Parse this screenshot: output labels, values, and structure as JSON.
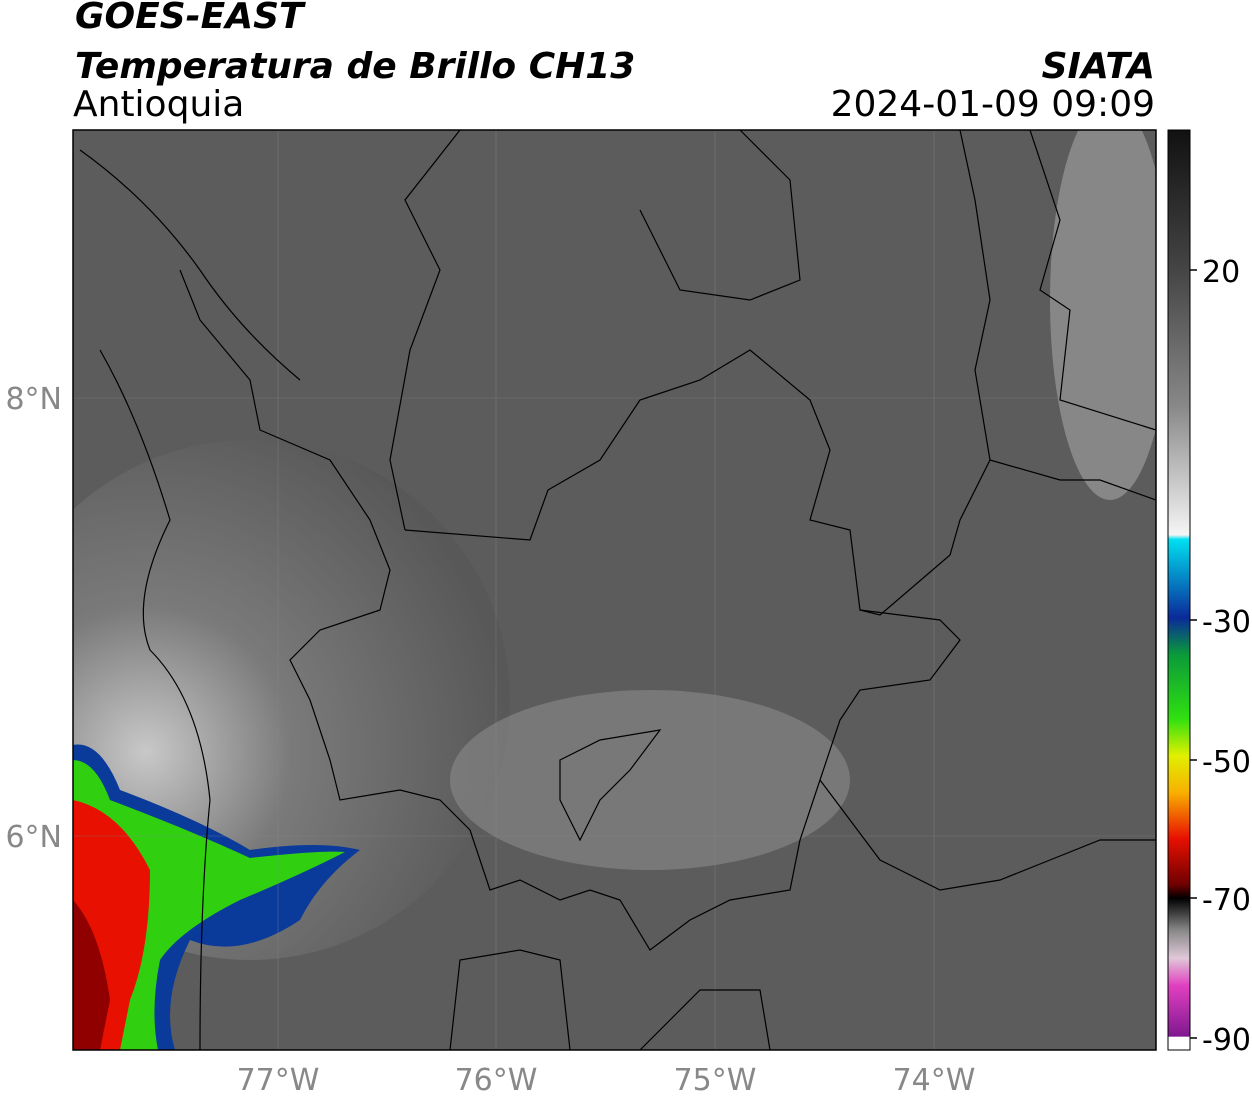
{
  "header": {
    "satellite": "GOES-EAST",
    "product": "Temperatura de Brillo CH13",
    "region": "Antioquia",
    "agency": "SIATA",
    "datetime": "2024-01-09 09:09"
  },
  "map": {
    "lat_labels": [
      "8°N",
      "6°N"
    ],
    "lon_labels": [
      "77°W",
      "76°W",
      "75°W",
      "74°W"
    ]
  },
  "colorbar": {
    "labels": [
      "20",
      "-30",
      "-50",
      "-70",
      "-90"
    ]
  }
}
